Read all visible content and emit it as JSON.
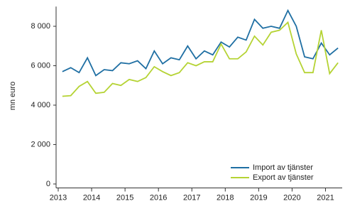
{
  "chart_data": {
    "type": "line",
    "y_label": "mn euro",
    "x": [
      2013.125,
      2013.375,
      2013.625,
      2013.875,
      2014.125,
      2014.375,
      2014.625,
      2014.875,
      2015.125,
      2015.375,
      2015.625,
      2015.875,
      2016.125,
      2016.375,
      2016.625,
      2016.875,
      2017.125,
      2017.375,
      2017.625,
      2017.875,
      2018.125,
      2018.375,
      2018.625,
      2018.875,
      2019.125,
      2019.375,
      2019.625,
      2019.875,
      2020.125,
      2020.375,
      2020.625,
      2020.875,
      2021.125,
      2021.375
    ],
    "series": [
      {
        "name": "Import av tjänster",
        "color": "#1f6fa3",
        "values": [
          5700,
          5900,
          5650,
          6400,
          5500,
          5800,
          5750,
          6150,
          6100,
          6250,
          5850,
          6750,
          6100,
          6400,
          6300,
          7000,
          6350,
          6750,
          6550,
          7200,
          6950,
          7450,
          7300,
          8350,
          7900,
          8000,
          7900,
          8800,
          8000,
          6450,
          6350,
          7150,
          6550,
          6900
        ]
      },
      {
        "name": "Export av tjänster",
        "color": "#b5d334",
        "values": [
          4450,
          4480,
          4950,
          5200,
          4600,
          4650,
          5100,
          5000,
          5300,
          5200,
          5400,
          5950,
          5700,
          5500,
          5650,
          6150,
          6000,
          6200,
          6200,
          7100,
          6350,
          6350,
          6700,
          7500,
          7050,
          7700,
          7800,
          8200,
          6600,
          5650,
          5650,
          7800,
          5600,
          6150
        ]
      }
    ],
    "xlim": [
      2013,
      2021.5
    ],
    "xticks": [
      2013,
      2014,
      2015,
      2016,
      2017,
      2018,
      2019,
      2020,
      2021
    ],
    "ylim": [
      -200,
      9000
    ],
    "yticks": [
      0,
      {
        "value": 2000,
        "label": "2 000"
      },
      {
        "value": 4000,
        "label": "4 000"
      },
      {
        "value": 6000,
        "label": "6 000"
      },
      {
        "value": 8000,
        "label": "8 000"
      }
    ],
    "legend": "lower right"
  }
}
